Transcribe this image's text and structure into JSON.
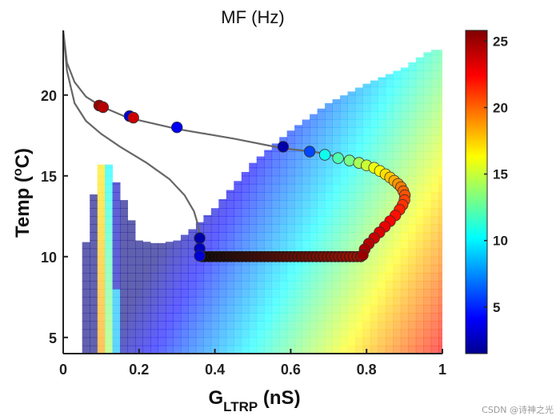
{
  "chart_data": {
    "type": "heatmap",
    "title": "MF (Hz)",
    "xlabel": {
      "main": "G",
      "sub": "LTRP",
      "unit": " (nS)"
    },
    "ylabel": {
      "main": "Temp (",
      "sup": "o",
      "unit": "C)"
    },
    "xlim": [
      0,
      1
    ],
    "ylim": [
      4,
      24
    ],
    "xticks": [
      0,
      0.2,
      0.4,
      0.6,
      0.8,
      1
    ],
    "xtick_labels": [
      "0",
      "0.2",
      "0.4",
      "0.6",
      "0.8",
      "1"
    ],
    "yticks": [
      5,
      10,
      15,
      20
    ],
    "ytick_labels": [
      "5",
      "10",
      "15",
      "20"
    ],
    "colorbar": {
      "colormap": "jet",
      "range": [
        1.5,
        25.8
      ],
      "ticks": [
        5,
        10,
        15,
        20,
        25
      ],
      "tick_labels": [
        "5",
        "10",
        "15",
        "20",
        "25"
      ]
    },
    "heatmap_region": {
      "x_range": [
        0.05,
        1.0
      ],
      "cell_width": 0.02,
      "cell_height": 0.5,
      "lower_boundary": [
        [
          0.05,
          4.0
        ],
        [
          0.2,
          4.0
        ]
      ],
      "upper_boundary": [
        [
          0.05,
          9.8
        ],
        [
          0.07,
          12.0
        ],
        [
          0.09,
          15.7
        ],
        [
          0.12,
          15.7
        ],
        [
          0.16,
          13.5
        ],
        [
          0.2,
          11.0
        ],
        [
          0.25,
          10.8
        ],
        [
          0.3,
          11.0
        ],
        [
          0.34,
          11.7
        ],
        [
          0.4,
          13.0
        ],
        [
          0.5,
          15.8
        ],
        [
          0.6,
          17.8
        ],
        [
          0.7,
          19.5
        ],
        [
          0.8,
          20.7
        ],
        [
          0.9,
          21.7
        ],
        [
          0.97,
          22.8
        ],
        [
          1.0,
          22.8
        ]
      ],
      "description": "MF increases with G_LTRP; blue low-MF band near lower-left, red high-MF toward right"
    },
    "series": [
      {
        "name": "trajectory upper",
        "type": "line",
        "color": "#666666",
        "x": [
          0.0,
          0.01,
          0.03,
          0.06,
          0.1,
          0.17,
          0.3,
          0.45,
          0.58,
          0.66,
          0.72,
          0.78,
          0.82
        ],
        "y": [
          24.0,
          22.0,
          20.8,
          19.9,
          19.3,
          18.6,
          17.9,
          17.3,
          16.7,
          16.5,
          16.2,
          15.8,
          15.5
        ]
      },
      {
        "name": "trajectory lower",
        "type": "line",
        "color": "#666666",
        "x": [
          0.0,
          0.01,
          0.03,
          0.06,
          0.1,
          0.15,
          0.22,
          0.28,
          0.32,
          0.345,
          0.355,
          0.36
        ],
        "y": [
          24.0,
          21.5,
          19.5,
          18.4,
          17.6,
          16.8,
          15.8,
          14.8,
          13.8,
          12.8,
          12.0,
          11.4
        ]
      },
      {
        "name": "markers",
        "type": "scatter",
        "points": [
          {
            "x": 0.095,
            "y": 19.35,
            "v": 25.2
          },
          {
            "x": 0.105,
            "y": 19.25,
            "v": 24.5
          },
          {
            "x": 0.175,
            "y": 18.7,
            "v": 3.5
          },
          {
            "x": 0.185,
            "y": 18.6,
            "v": 24.0
          },
          {
            "x": 0.3,
            "y": 18.0,
            "v": 4.2
          },
          {
            "x": 0.58,
            "y": 16.8,
            "v": 2.5
          },
          {
            "x": 0.65,
            "y": 16.5,
            "v": 6.2
          },
          {
            "x": 0.69,
            "y": 16.3,
            "v": 11.0
          },
          {
            "x": 0.725,
            "y": 16.1,
            "v": 12.5
          },
          {
            "x": 0.755,
            "y": 15.95,
            "v": 13.5
          },
          {
            "x": 0.78,
            "y": 15.8,
            "v": 14.6
          },
          {
            "x": 0.8,
            "y": 15.65,
            "v": 15.4
          },
          {
            "x": 0.82,
            "y": 15.5,
            "v": 16.2
          },
          {
            "x": 0.835,
            "y": 15.3,
            "v": 16.8
          },
          {
            "x": 0.85,
            "y": 15.1,
            "v": 17.4
          },
          {
            "x": 0.862,
            "y": 14.9,
            "v": 18.0
          },
          {
            "x": 0.873,
            "y": 14.7,
            "v": 18.6
          },
          {
            "x": 0.883,
            "y": 14.5,
            "v": 19.2
          },
          {
            "x": 0.891,
            "y": 14.3,
            "v": 19.8
          },
          {
            "x": 0.897,
            "y": 14.05,
            "v": 20.3
          },
          {
            "x": 0.901,
            "y": 13.8,
            "v": 20.8
          },
          {
            "x": 0.9,
            "y": 13.5,
            "v": 21.2
          },
          {
            "x": 0.895,
            "y": 13.2,
            "v": 21.6
          },
          {
            "x": 0.887,
            "y": 12.9,
            "v": 22.0
          },
          {
            "x": 0.876,
            "y": 12.55,
            "v": 22.4
          },
          {
            "x": 0.862,
            "y": 12.2,
            "v": 22.8
          },
          {
            "x": 0.848,
            "y": 11.85,
            "v": 23.2
          },
          {
            "x": 0.834,
            "y": 11.5,
            "v": 23.6
          },
          {
            "x": 0.82,
            "y": 11.15,
            "v": 24.0
          },
          {
            "x": 0.806,
            "y": 10.8,
            "v": 24.4
          },
          {
            "x": 0.795,
            "y": 10.45,
            "v": 24.8
          },
          {
            "x": 0.79,
            "y": 10.1,
            "v": 25.2
          },
          {
            "x": 0.36,
            "y": 11.15,
            "v": 2.5
          },
          {
            "x": 0.36,
            "y": 10.5,
            "v": 3.0
          },
          {
            "x": 0.36,
            "y": 10.05,
            "v": 3.5
          }
        ],
        "bottom_row": {
          "x_start": 0.365,
          "x_end": 0.785,
          "y": 10.0,
          "count": 44,
          "v_start": 1.8,
          "v_end": 24.8,
          "note": "markers shade from black at left toward dark red at right"
        }
      }
    ]
  },
  "watermark": "CSDN @诗神之光"
}
